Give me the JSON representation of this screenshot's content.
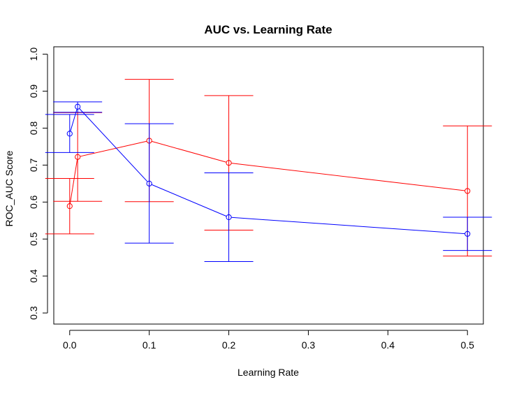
{
  "chart_data": {
    "type": "line",
    "title": "AUC vs. Learning Rate",
    "xlabel": "Learning Rate",
    "ylabel": "ROC_AUC Score",
    "xlim": [
      -0.02,
      0.52
    ],
    "ylim": [
      0.27,
      1.02
    ],
    "xticks": [
      "0.0",
      "0.1",
      "0.2",
      "0.3",
      "0.4",
      "0.5"
    ],
    "yticks": [
      "0.3",
      "0.4",
      "0.5",
      "0.6",
      "0.7",
      "0.8",
      "0.9",
      "1.0"
    ],
    "grid": false,
    "legend": "none",
    "series": [
      {
        "color": "#ff0000",
        "points": [
          {
            "x": 0.0,
            "y": 0.589,
            "lower": 0.514,
            "upper": 0.664
          },
          {
            "x": 0.01,
            "y": 0.722,
            "lower": 0.602,
            "upper": 0.842
          },
          {
            "x": 0.1,
            "y": 0.766,
            "lower": 0.601,
            "upper": 0.932
          },
          {
            "x": 0.2,
            "y": 0.706,
            "lower": 0.524,
            "upper": 0.888
          },
          {
            "x": 0.5,
            "y": 0.63,
            "lower": 0.454,
            "upper": 0.806
          }
        ]
      },
      {
        "color": "#0000ff",
        "points": [
          {
            "x": 0.0,
            "y": 0.785,
            "lower": 0.734,
            "upper": 0.837
          },
          {
            "x": 0.01,
            "y": 0.858,
            "lower": 0.843,
            "upper": 0.871
          },
          {
            "x": 0.1,
            "y": 0.65,
            "lower": 0.489,
            "upper": 0.812
          },
          {
            "x": 0.2,
            "y": 0.559,
            "lower": 0.439,
            "upper": 0.679
          },
          {
            "x": 0.5,
            "y": 0.514,
            "lower": 0.469,
            "upper": 0.559
          }
        ]
      }
    ]
  }
}
